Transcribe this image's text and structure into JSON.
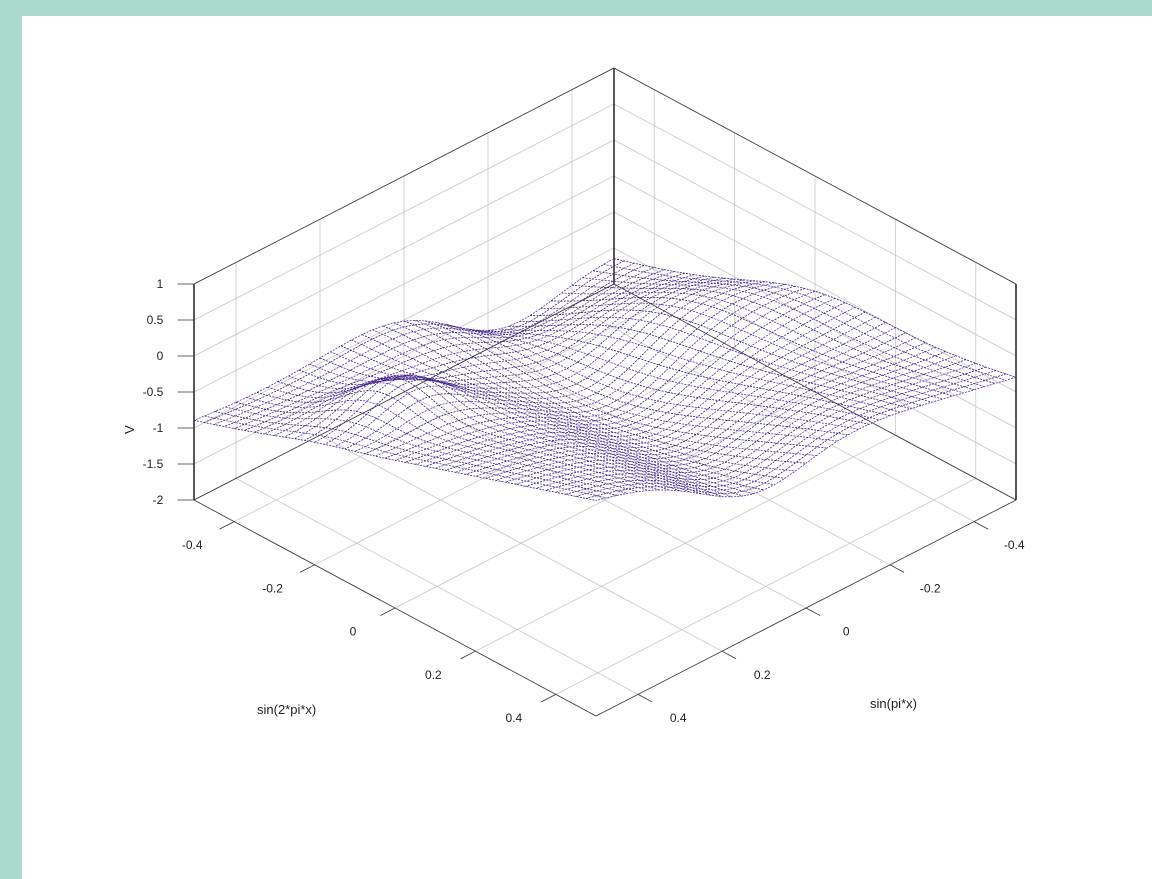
{
  "chart_data": {
    "type": "surface",
    "surface": "mesh",
    "xlabel": "sin(pi*x)",
    "ylabel": "sin(2*pi*x)",
    "zlabel": "V",
    "xlim": [
      -0.5,
      0.5
    ],
    "ylim": [
      -0.5,
      0.5
    ],
    "zlim": [
      -2,
      1
    ],
    "xticks": [
      -0.4,
      -0.2,
      0,
      0.2,
      0.4
    ],
    "yticks": [
      -0.4,
      -0.2,
      0,
      0.2,
      0.4
    ],
    "zticks": [
      -2,
      -1.5,
      -1,
      -0.5,
      0,
      0.5,
      1
    ],
    "xtick_labels": [
      "-0.4",
      "-0.2",
      "0",
      "0.2",
      "0.4"
    ],
    "ytick_labels": [
      "-0.4",
      "-0.2",
      "0",
      "0.2",
      "0.4"
    ],
    "ztick_labels": [
      "-2",
      "-1.5",
      "-1",
      "-0.5",
      "0",
      "0.5",
      "1"
    ],
    "grid": true,
    "mesh_color": "#5a2fa0",
    "mesh_color_dark": "#2f1e78",
    "grid_points": 40,
    "corner_values": {
      "x_neg_y_neg": -1.6,
      "x_pos_y_neg": -0.3,
      "x_neg_y_pos": -0.9,
      "x_pos_y_pos": 1.0
    }
  }
}
